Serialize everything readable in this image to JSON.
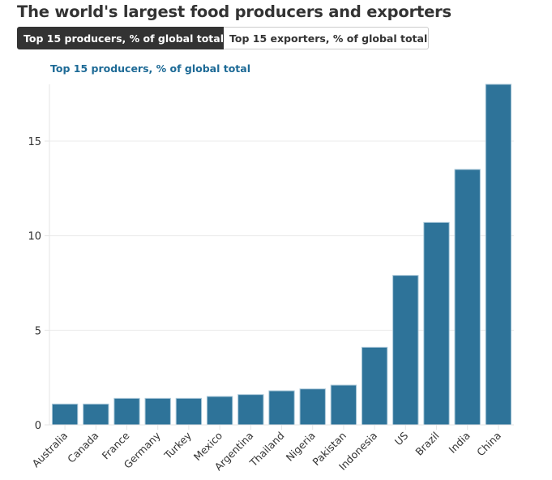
{
  "header": {
    "title": "The world's largest food producers and exporters"
  },
  "tabs": [
    {
      "label": "Top 15 producers, % of global total",
      "active": true
    },
    {
      "label": "Top 15 exporters, % of global total",
      "active": false
    }
  ],
  "colors": {
    "bar": "#2e7399",
    "bar_border": "#a9c7d8",
    "subtitle": "#1d6a96",
    "active_tab": "#333333"
  },
  "chart_data": {
    "type": "bar",
    "title": "Top 15 producers, % of global total",
    "xlabel": "",
    "ylabel": "",
    "categories": [
      "Australia",
      "Canada",
      "France",
      "Germany",
      "Turkey",
      "Mexico",
      "Argentina",
      "Thailand",
      "Nigeria",
      "Pakistan",
      "Indonesia",
      "US",
      "Brazil",
      "India",
      "China"
    ],
    "values": [
      1.1,
      1.1,
      1.4,
      1.4,
      1.4,
      1.5,
      1.6,
      1.8,
      1.9,
      2.1,
      4.1,
      7.9,
      10.7,
      13.5,
      18.0
    ],
    "ylim": [
      0,
      18
    ],
    "yticks": [
      0,
      5,
      10,
      15
    ],
    "ytick_labels": [
      "0",
      "5",
      "10",
      "15"
    ],
    "grid": true,
    "legend": "none"
  }
}
